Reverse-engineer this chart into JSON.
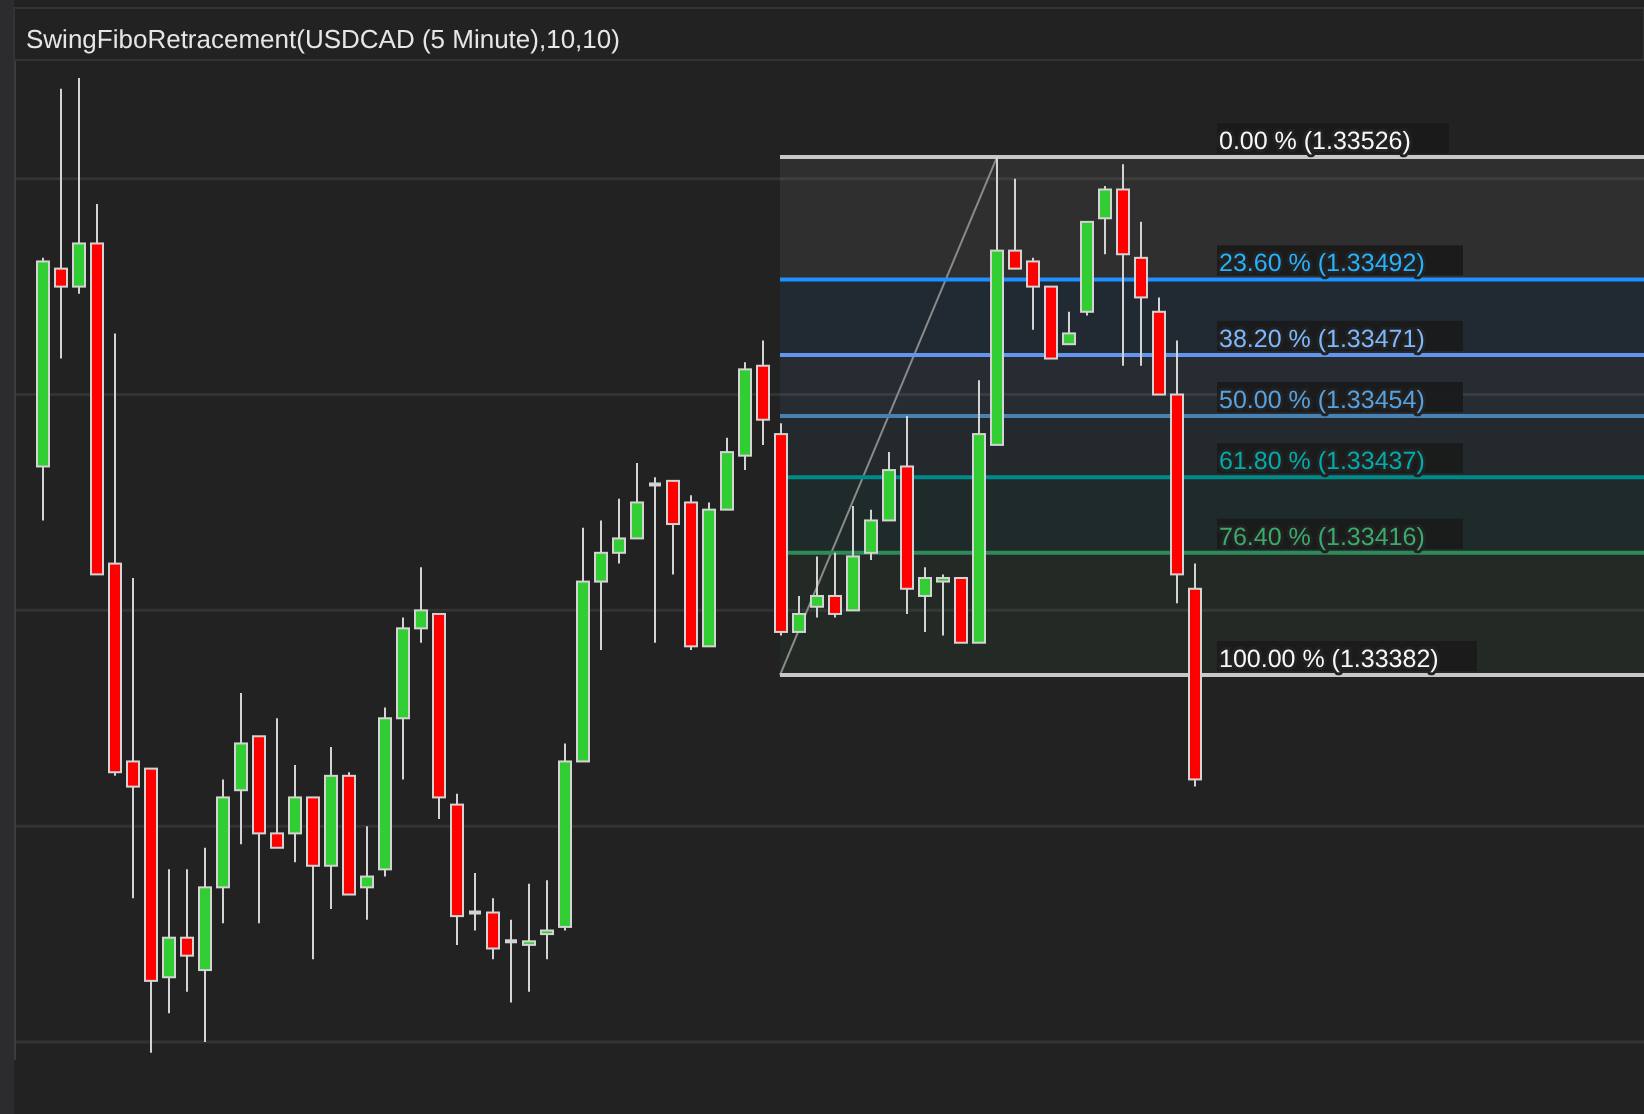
{
  "chart_data": {
    "type": "candlestick",
    "title": "SwingFiboRetracement(USDCAD (5 Minute),10,10)",
    "categories": [
      null,
      null,
      null,
      null,
      null,
      null,
      null,
      null,
      null,
      null,
      null,
      null,
      null,
      null,
      null,
      null,
      null,
      null,
      null,
      null,
      null,
      null,
      null,
      null,
      null,
      null,
      null,
      null,
      null,
      null,
      null,
      null,
      null,
      null,
      null,
      null,
      null,
      null,
      null,
      null,
      null,
      null,
      null,
      null,
      null,
      null,
      null,
      null,
      null,
      null,
      null,
      null,
      null,
      null,
      null,
      null,
      null,
      null,
      null,
      null,
      null,
      null,
      null,
      null,
      null
    ],
    "ohlc": [
      [
        1.3344,
        1.33498,
        1.33425,
        1.33497
      ],
      [
        1.33495,
        1.33545,
        1.3347,
        1.3349
      ],
      [
        1.3349,
        1.33548,
        1.33488,
        1.33502
      ],
      [
        1.33502,
        1.33513,
        1.3341,
        1.3341
      ],
      [
        1.33413,
        1.33477,
        1.33354,
        1.33355
      ],
      [
        1.33358,
        1.33409,
        1.3332,
        1.33351
      ],
      [
        1.33356,
        1.33356,
        1.33277,
        1.33297
      ],
      [
        1.33298,
        1.33328,
        1.33288,
        1.33309
      ],
      [
        1.33309,
        1.33328,
        1.33294,
        1.33304
      ],
      [
        1.333,
        1.33334,
        1.3328,
        1.33323
      ],
      [
        1.33323,
        1.33353,
        1.33313,
        1.33348
      ],
      [
        1.3335,
        1.33377,
        1.33335,
        1.33363
      ],
      [
        1.33365,
        1.33365,
        1.33313,
        1.33338
      ],
      [
        1.33338,
        1.3337,
        1.33334,
        1.33334
      ],
      [
        1.33338,
        1.33357,
        1.3333,
        1.33348
      ],
      [
        1.33348,
        1.33348,
        1.33303,
        1.33329
      ],
      [
        1.33329,
        1.33362,
        1.33317,
        1.33354
      ],
      [
        1.33354,
        1.33355,
        1.33321,
        1.33321
      ],
      [
        1.33323,
        1.3334,
        1.33314,
        1.33326
      ],
      [
        1.33328,
        1.33373,
        1.33326,
        1.3337
      ],
      [
        1.3337,
        1.33398,
        1.33353,
        1.33395
      ],
      [
        1.33395,
        1.33412,
        1.33391,
        1.334
      ],
      [
        1.33399,
        1.33399,
        1.33342,
        1.33348
      ],
      [
        1.33346,
        1.33349,
        1.33307,
        1.33315
      ],
      [
        1.33316,
        1.33327,
        1.33311,
        1.33316
      ],
      [
        1.33316,
        1.3332,
        1.33303,
        1.33306
      ],
      [
        1.33308,
        1.33314,
        1.33291,
        1.33308
      ],
      [
        1.33307,
        1.33324,
        1.33294,
        1.33308
      ],
      [
        1.3331,
        1.33325,
        1.33303,
        1.33311
      ],
      [
        1.33312,
        1.33363,
        1.33311,
        1.33358
      ],
      [
        1.33358,
        1.33423,
        1.33358,
        1.33408
      ],
      [
        1.33408,
        1.33425,
        1.33389,
        1.33416
      ],
      [
        1.33416,
        1.33431,
        1.33413,
        1.3342
      ],
      [
        1.3342,
        1.33441,
        1.3342,
        1.3343
      ],
      [
        1.33435,
        1.33437,
        1.33391,
        1.33435
      ],
      [
        1.33436,
        1.33436,
        1.3341,
        1.33424
      ],
      [
        1.3343,
        1.33432,
        1.33389,
        1.3339
      ],
      [
        1.3339,
        1.3343,
        1.3339,
        1.33428
      ],
      [
        1.33428,
        1.33448,
        1.33428,
        1.33444
      ],
      [
        1.33443,
        1.33469,
        1.33439,
        1.33467
      ],
      [
        1.33468,
        1.33475,
        1.33446,
        1.33453
      ],
      [
        1.33449,
        1.33452,
        1.33393,
        1.33394
      ],
      [
        1.33394,
        1.33404,
        1.33394,
        1.33399
      ],
      [
        1.33401,
        1.33415,
        1.33398,
        1.33404
      ],
      [
        1.33404,
        1.33416,
        1.33398,
        1.33399
      ],
      [
        1.334,
        1.33429,
        1.334,
        1.33415
      ],
      [
        1.33416,
        1.33428,
        1.33414,
        1.33425
      ],
      [
        1.33425,
        1.33444,
        1.33425,
        1.33439
      ],
      [
        1.3344,
        1.33454,
        1.33399,
        1.33406
      ],
      [
        1.33404,
        1.33412,
        1.33394,
        1.33409
      ],
      [
        1.33408,
        1.3341,
        1.33393,
        1.33409
      ],
      [
        1.33409,
        1.33409,
        1.33391,
        1.33391
      ],
      [
        1.33391,
        1.33464,
        1.33391,
        1.33449
      ],
      [
        1.33446,
        1.33526,
        1.33446,
        1.335
      ],
      [
        1.335,
        1.3352,
        1.33495,
        1.33495
      ],
      [
        1.33497,
        1.33498,
        1.33478,
        1.3349
      ],
      [
        1.3349,
        1.3349,
        1.3347,
        1.3347
      ],
      [
        1.33474,
        1.33483,
        1.33474,
        1.33477
      ],
      [
        1.33483,
        1.33508,
        1.33482,
        1.33508
      ],
      [
        1.33509,
        1.33518,
        1.33499,
        1.33517
      ],
      [
        1.33517,
        1.33524,
        1.33468,
        1.33499
      ],
      [
        1.33498,
        1.33508,
        1.33468,
        1.33487
      ],
      [
        1.33483,
        1.33487,
        1.3346,
        1.3346
      ],
      [
        1.3346,
        1.33475,
        1.33402,
        1.3341
      ],
      [
        1.33406,
        1.33413,
        1.33351,
        1.33353
      ]
    ],
    "ylim": [
      1.33275,
      1.33553
    ],
    "yticks": [
      {
        "value": 1.3328,
        "label": null
      },
      {
        "value": 1.3334,
        "label": null
      },
      {
        "value": 1.334,
        "label": null
      },
      {
        "value": 1.3346,
        "label": null
      },
      {
        "value": 1.3352,
        "label": null
      }
    ],
    "grid": "y",
    "tick_labels": false,
    "ref_lines": [
      {
        "axis": "y",
        "value": 1.33526,
        "label": "0.00 % (1.33526)",
        "color": "#c8c8c8"
      },
      {
        "axis": "y",
        "value": 1.33492,
        "label": "23.60 % (1.33492)",
        "color": "#1e90ff"
      },
      {
        "axis": "y",
        "value": 1.33471,
        "label": "38.20 % (1.33471)",
        "color": "#6495ed"
      },
      {
        "axis": "y",
        "value": 1.33454,
        "label": "50.00 % (1.33454)",
        "color": "#4682b4"
      },
      {
        "axis": "y",
        "value": 1.33437,
        "label": "61.80 % (1.33437)",
        "color": "#008b8b"
      },
      {
        "axis": "y",
        "value": 1.33416,
        "label": "76.40 % (1.33416)",
        "color": "#2e8b57"
      },
      {
        "axis": "y",
        "value": 1.33382,
        "label": "100.00 % (1.33382)",
        "color": "#c8c8c8"
      }
    ],
    "bands": [
      {
        "axis": "y",
        "from": 1.33492,
        "to": 1.33526,
        "color": "#c8c8c8"
      },
      {
        "axis": "y",
        "from": 1.33471,
        "to": 1.33492,
        "color": "#1e90ff"
      },
      {
        "axis": "y",
        "from": 1.33454,
        "to": 1.33471,
        "color": "#6495ed"
      },
      {
        "axis": "y",
        "from": 1.33437,
        "to": 1.33454,
        "color": "#4682b4"
      },
      {
        "axis": "y",
        "from": 1.33416,
        "to": 1.33437,
        "color": "#008b8b"
      },
      {
        "axis": "y",
        "from": 1.33382,
        "to": 1.33416,
        "color": "#2e8b57"
      }
    ]
  }
}
